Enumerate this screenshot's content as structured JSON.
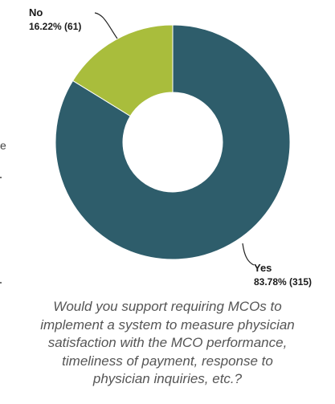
{
  "chart_data": {
    "type": "pie",
    "variant": "donut",
    "start_angle_deg": 0,
    "direction": "clockwise",
    "slices": [
      {
        "label": "Yes",
        "value_text": "83.78% (315)",
        "percent": 83.78,
        "count": 315,
        "color": "#2e5d6b"
      },
      {
        "label": "No",
        "value_text": "16.22% (61)",
        "percent": 16.22,
        "count": 61,
        "color": "#a9bd3c"
      }
    ]
  },
  "caption": {
    "lines": [
      "Would you support requiring MCOs to",
      "implement a system to measure physician",
      "satisfaction with the MCO performance,",
      "timeliness of payment, response to",
      "physician inquiries, etc.?"
    ]
  }
}
